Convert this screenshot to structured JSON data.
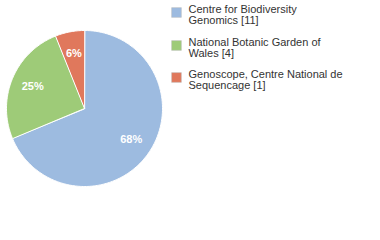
{
  "chart_data": {
    "type": "pie",
    "categories": [
      "Centre for Biodiversity Genomics [11]",
      "National Botanic Garden of Wales [4]",
      "Genoscope, Centre National de Sequencage [1]"
    ],
    "values": [
      68,
      25,
      6
    ],
    "value_labels": [
      "68%",
      "25%",
      "6%"
    ],
    "colors": [
      "#9dbbe0",
      "#9ecb78",
      "#e0785c"
    ],
    "data_labels": true,
    "legend": "right"
  }
}
